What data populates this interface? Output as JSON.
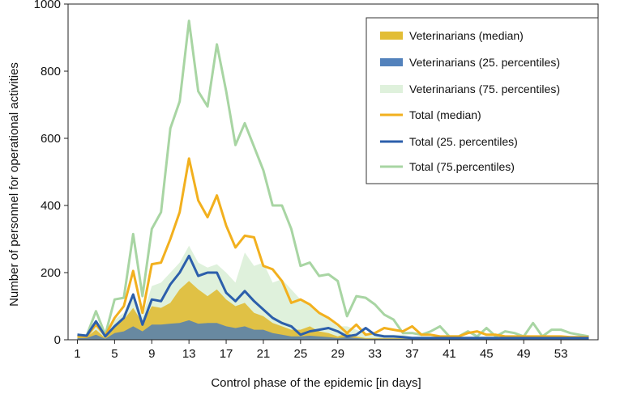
{
  "chart_data": {
    "type": "line",
    "xlabel": "Control phase of the epidemic [in days]",
    "ylabel": "Number of personnel for operational activities",
    "xlim": [
      0,
      57
    ],
    "ylim": [
      0,
      1000
    ],
    "x_ticks": [
      1,
      5,
      9,
      13,
      17,
      21,
      25,
      29,
      33,
      37,
      41,
      45,
      49,
      53
    ],
    "y_ticks": [
      0,
      200,
      400,
      600,
      800,
      1000
    ],
    "legend_position": "top-right",
    "days": [
      1,
      2,
      3,
      4,
      5,
      6,
      7,
      8,
      9,
      10,
      11,
      12,
      13,
      14,
      15,
      16,
      17,
      18,
      19,
      20,
      21,
      22,
      23,
      24,
      25,
      26,
      27,
      28,
      29,
      30,
      31,
      32,
      33,
      34,
      35,
      36,
      37,
      38,
      39,
      40,
      41,
      42,
      43,
      44,
      45,
      46,
      47,
      48,
      49,
      50,
      51,
      52,
      53,
      54,
      55,
      56
    ],
    "series": [
      {
        "name": "Veterinarians (median)",
        "kind": "area",
        "color": "#e0b92a",
        "values": [
          10,
          8,
          30,
          5,
          40,
          60,
          95,
          50,
          100,
          95,
          110,
          150,
          175,
          150,
          130,
          150,
          120,
          100,
          110,
          80,
          70,
          50,
          40,
          30,
          30,
          40,
          25,
          20,
          10,
          20,
          10,
          5,
          5,
          5,
          5,
          5,
          5,
          5,
          5,
          5,
          5,
          5,
          5,
          5,
          5,
          5,
          5,
          5,
          5,
          5,
          5,
          5,
          5,
          5,
          5,
          5
        ]
      },
      {
        "name": "Veterinarians (25. percentiles)",
        "kind": "area",
        "color": "#4a7bb8",
        "values": [
          5,
          5,
          15,
          3,
          20,
          25,
          40,
          25,
          45,
          45,
          48,
          50,
          58,
          48,
          50,
          50,
          40,
          35,
          40,
          30,
          30,
          20,
          15,
          10,
          10,
          12,
          10,
          8,
          5,
          8,
          5,
          3,
          3,
          3,
          3,
          3,
          3,
          3,
          3,
          3,
          3,
          3,
          3,
          3,
          3,
          3,
          3,
          3,
          3,
          3,
          3,
          3,
          3,
          3,
          3,
          3
        ]
      },
      {
        "name": "Veterinarians (75. percentiles)",
        "kind": "area",
        "color": "#dcefd8",
        "values": [
          15,
          12,
          60,
          10,
          60,
          80,
          140,
          70,
          160,
          170,
          200,
          230,
          280,
          230,
          215,
          225,
          200,
          170,
          260,
          220,
          230,
          170,
          180,
          150,
          120,
          110,
          80,
          60,
          40,
          40,
          30,
          20,
          20,
          15,
          15,
          15,
          10,
          10,
          10,
          10,
          10,
          10,
          10,
          10,
          10,
          10,
          10,
          10,
          10,
          10,
          10,
          10,
          10,
          10,
          10,
          10
        ]
      },
      {
        "name": "Total (median)",
        "kind": "line",
        "color": "#f2b01e",
        "values": [
          12,
          10,
          45,
          12,
          65,
          100,
          205,
          80,
          225,
          230,
          300,
          380,
          540,
          415,
          365,
          430,
          340,
          275,
          310,
          305,
          220,
          210,
          175,
          110,
          120,
          105,
          80,
          65,
          45,
          20,
          45,
          15,
          20,
          35,
          30,
          25,
          40,
          15,
          15,
          10,
          10,
          10,
          20,
          25,
          15,
          15,
          10,
          10,
          10,
          10,
          10,
          10,
          10,
          8,
          8,
          8
        ]
      },
      {
        "name": "Total (25. percentiles)",
        "kind": "line",
        "color": "#2c5fab",
        "values": [
          15,
          12,
          55,
          10,
          40,
          65,
          135,
          45,
          120,
          115,
          165,
          200,
          250,
          190,
          200,
          200,
          140,
          115,
          145,
          115,
          90,
          65,
          50,
          40,
          15,
          25,
          30,
          35,
          25,
          10,
          15,
          35,
          15,
          10,
          10,
          8,
          5,
          5,
          5,
          5,
          5,
          5,
          5,
          5,
          5,
          5,
          5,
          5,
          5,
          5,
          5,
          5,
          5,
          5,
          5,
          5
        ]
      },
      {
        "name": "Total (75.percentiles)",
        "kind": "line",
        "color": "#a8d5a3",
        "values": [
          15,
          12,
          85,
          15,
          120,
          125,
          315,
          130,
          330,
          380,
          630,
          710,
          950,
          740,
          695,
          880,
          740,
          580,
          645,
          575,
          505,
          400,
          400,
          330,
          220,
          230,
          190,
          195,
          175,
          70,
          130,
          125,
          105,
          75,
          60,
          20,
          20,
          15,
          25,
          40,
          10,
          10,
          25,
          10,
          35,
          10,
          25,
          20,
          10,
          50,
          10,
          30,
          30,
          20,
          15,
          10
        ]
      }
    ]
  }
}
